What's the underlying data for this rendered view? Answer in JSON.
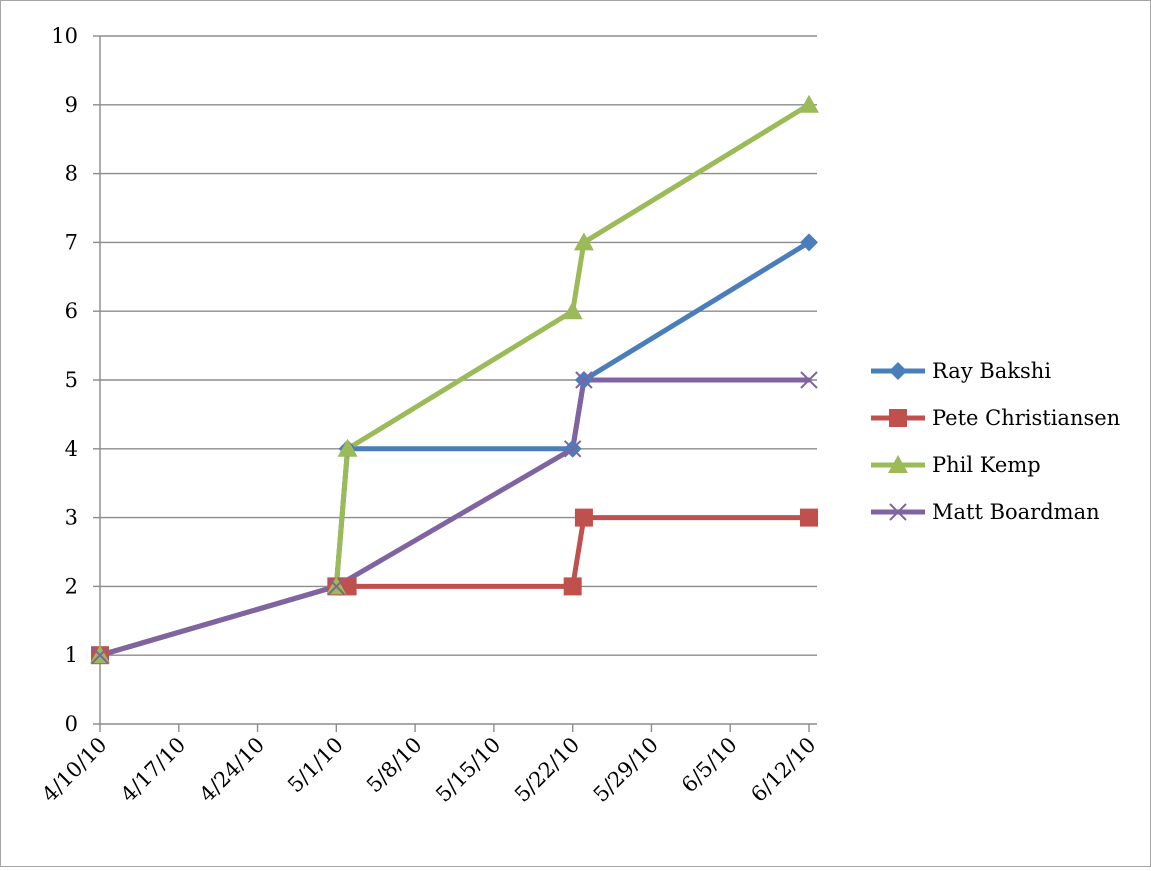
{
  "chart_data": {
    "type": "line",
    "title": "",
    "xlabel": "",
    "ylabel": "",
    "x_ticks": [
      "4/10/10",
      "4/17/10",
      "4/24/10",
      "5/1/10",
      "5/8/10",
      "5/15/10",
      "5/22/10",
      "5/29/10",
      "6/5/10",
      "6/12/10"
    ],
    "y_ticks": [
      "0",
      "1",
      "2",
      "3",
      "4",
      "5",
      "6",
      "7",
      "8",
      "9",
      "10"
    ],
    "xlim": [
      "2010-04-10",
      "2010-06-12"
    ],
    "ylim": [
      0,
      10
    ],
    "grid": "horizontal",
    "legend_position": "right",
    "series": [
      {
        "name": "Ray Bakshi",
        "color": "#4a7ebb",
        "marker": "diamond",
        "points": [
          {
            "x": "2010-04-10",
            "y": 1
          },
          {
            "x": "2010-05-01",
            "y": 2
          },
          {
            "x": "2010-05-02",
            "y": 4
          },
          {
            "x": "2010-05-22",
            "y": 4
          },
          {
            "x": "2010-05-23",
            "y": 5
          },
          {
            "x": "2010-06-12",
            "y": 7
          }
        ]
      },
      {
        "name": "Pete Christiansen",
        "color": "#c0504d",
        "marker": "square",
        "points": [
          {
            "x": "2010-04-10",
            "y": 1
          },
          {
            "x": "2010-05-01",
            "y": 2
          },
          {
            "x": "2010-05-02",
            "y": 2
          },
          {
            "x": "2010-05-22",
            "y": 2
          },
          {
            "x": "2010-05-23",
            "y": 3
          },
          {
            "x": "2010-06-12",
            "y": 3
          }
        ]
      },
      {
        "name": "Phil Kemp",
        "color": "#9bbb59",
        "marker": "triangle",
        "points": [
          {
            "x": "2010-04-10",
            "y": 1
          },
          {
            "x": "2010-05-01",
            "y": 2
          },
          {
            "x": "2010-05-02",
            "y": 4
          },
          {
            "x": "2010-05-22",
            "y": 6
          },
          {
            "x": "2010-05-23",
            "y": 7
          },
          {
            "x": "2010-06-12",
            "y": 9
          }
        ]
      },
      {
        "name": "Matt Boardman",
        "color": "#8064a2",
        "marker": "x",
        "points": [
          {
            "x": "2010-04-10",
            "y": 1
          },
          {
            "x": "2010-05-01",
            "y": 2
          },
          {
            "x": "2010-05-22",
            "y": 4
          },
          {
            "x": "2010-05-23",
            "y": 5
          },
          {
            "x": "2010-06-12",
            "y": 5
          }
        ]
      }
    ]
  }
}
